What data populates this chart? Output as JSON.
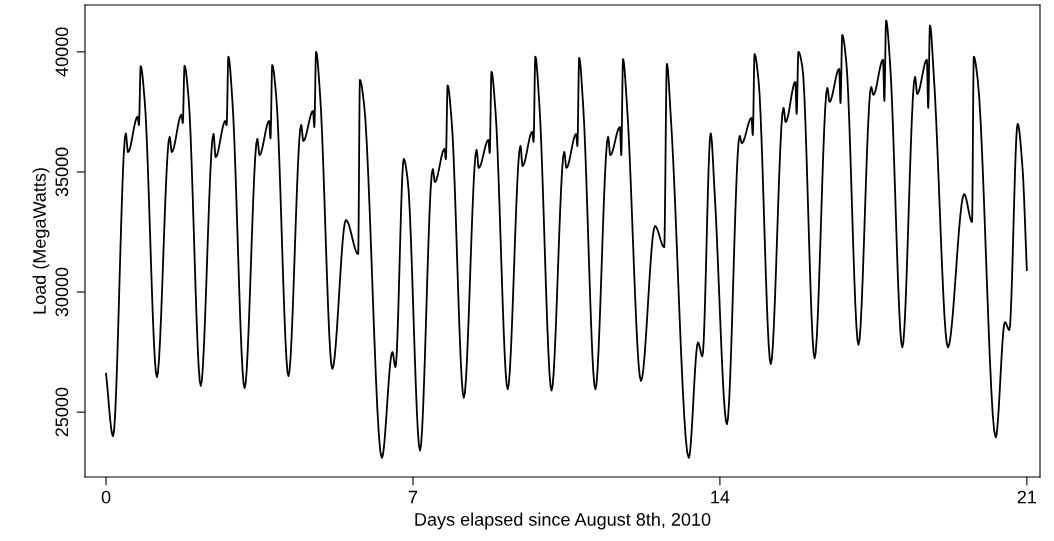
{
  "chart_data": {
    "type": "line",
    "xlabel": "Days elapsed since August 8th, 2010",
    "ylabel": "Load (MegaWatts)",
    "xlim": [
      -0.48,
      21.3
    ],
    "ylim": [
      22300,
      41950
    ],
    "xticks": [
      0,
      7,
      14,
      21
    ],
    "yticks": [
      25000,
      30000,
      35000,
      40000
    ],
    "grid": false,
    "marker": "none",
    "line_style": "solid",
    "series": [
      {
        "color": "#000000",
        "x": [
          0,
          0.16,
          0.45,
          0.5,
          0.72,
          0.75,
          0.79,
          0.88,
          1.16,
          1.45,
          1.5,
          1.72,
          1.75,
          1.79,
          1.88,
          2.16,
          2.45,
          2.5,
          2.72,
          2.75,
          2.79,
          2.88,
          3.16,
          3.45,
          3.5,
          3.72,
          3.75,
          3.79,
          3.88,
          4.16,
          4.45,
          4.5,
          4.72,
          4.75,
          4.79,
          4.88,
          5.16,
          5.47,
          5.75,
          5.79,
          5.88,
          6.29,
          6.53,
          6.6,
          6.79,
          6.88,
          7.16,
          7.45,
          7.5,
          7.72,
          7.75,
          7.79,
          7.88,
          8.16,
          8.45,
          8.5,
          8.72,
          8.75,
          8.79,
          8.88,
          9.16,
          9.45,
          9.5,
          9.72,
          9.75,
          9.79,
          9.88,
          10.16,
          10.45,
          10.5,
          10.72,
          10.75,
          10.79,
          10.88,
          11.16,
          11.45,
          11.5,
          11.72,
          11.75,
          11.79,
          11.88,
          12.2,
          12.52,
          12.73,
          12.79,
          12.88,
          13.29,
          13.5,
          13.6,
          13.79,
          13.88,
          14.16,
          14.45,
          14.5,
          14.72,
          14.75,
          14.79,
          14.88,
          15.16,
          15.45,
          15.5,
          15.72,
          15.75,
          15.79,
          15.88,
          16.16,
          16.45,
          16.5,
          16.72,
          16.75,
          16.79,
          16.88,
          17.16,
          17.45,
          17.5,
          17.72,
          17.75,
          17.79,
          17.88,
          18.16,
          18.45,
          18.5,
          18.72,
          18.75,
          18.79,
          18.88,
          19.2,
          19.57,
          19.75,
          19.79,
          19.88,
          20.29,
          20.5,
          20.6,
          20.79,
          20.9,
          21.0
        ],
        "values": [
          26600,
          24000,
          36600,
          35830,
          37300,
          36950,
          39400,
          38000,
          26460,
          36460,
          35830,
          37380,
          37040,
          39420,
          38120,
          26100,
          36580,
          35620,
          37120,
          36950,
          39800,
          38000,
          26000,
          36380,
          35700,
          37120,
          36400,
          39450,
          38170,
          26500,
          36960,
          36290,
          37540,
          36870,
          40000,
          38250,
          26800,
          33000,
          31580,
          38830,
          37900,
          23100,
          27500,
          26880,
          35540,
          34660,
          23400,
          35120,
          34580,
          35960,
          35540,
          38600,
          37170,
          25600,
          35920,
          35170,
          36330,
          35790,
          39170,
          37580,
          25950,
          36080,
          35250,
          36670,
          36250,
          39800,
          37880,
          25900,
          35830,
          35170,
          36580,
          36080,
          39750,
          37790,
          25950,
          36460,
          35700,
          36870,
          35700,
          39700,
          37790,
          26300,
          32750,
          31870,
          39500,
          37300,
          23100,
          27900,
          27330,
          36600,
          34120,
          24500,
          36500,
          36200,
          37250,
          36540,
          39900,
          38830,
          27000,
          37670,
          37080,
          38750,
          37420,
          40000,
          39380,
          27250,
          38500,
          37920,
          39290,
          37870,
          40700,
          39620,
          27800,
          38540,
          38210,
          39670,
          37960,
          41300,
          39540,
          27700,
          38960,
          38250,
          39670,
          37670,
          41100,
          38960,
          27700,
          34080,
          32920,
          39800,
          38830,
          23950,
          28750,
          28420,
          37000,
          35200,
          30920
        ]
      }
    ]
  }
}
